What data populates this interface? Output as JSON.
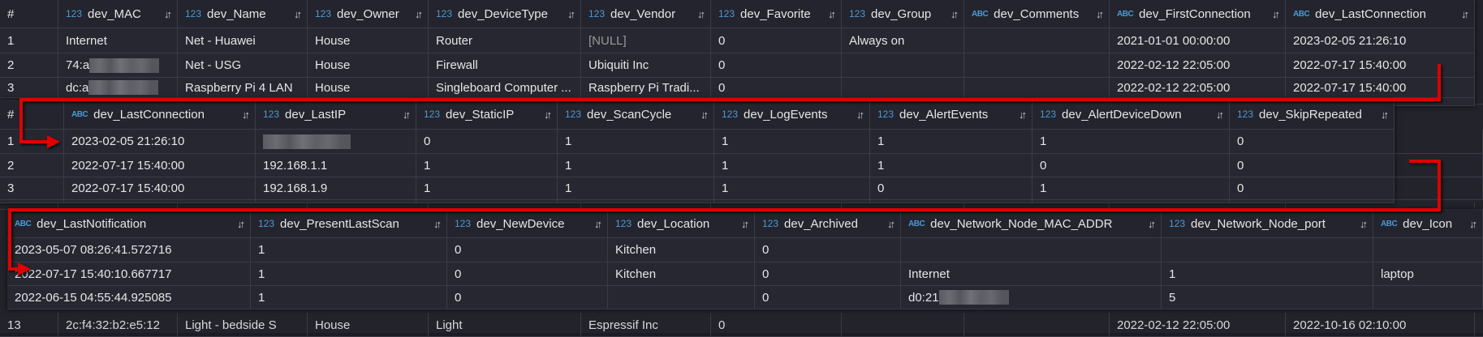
{
  "background_table": {
    "row": {
      "index": "13",
      "dev_MAC": "2c:f4:32:b2:e5:12",
      "dev_Name": "Light - bedside S",
      "dev_Owner": "House",
      "dev_DeviceType": "Light",
      "dev_Vendor": "Espressif Inc",
      "dev_Favorite": "0",
      "dev_FirstConnection": "2022-02-12 22:05:00",
      "dev_LastConnection": "2022-10-16 02:10:00"
    }
  },
  "tables": [
    {
      "columns": [
        {
          "name": "#",
          "type": ""
        },
        {
          "name": "dev_MAC",
          "type": "123"
        },
        {
          "name": "dev_Name",
          "type": "123"
        },
        {
          "name": "dev_Owner",
          "type": "123"
        },
        {
          "name": "dev_DeviceType",
          "type": "123"
        },
        {
          "name": "dev_Vendor",
          "type": "123"
        },
        {
          "name": "dev_Favorite",
          "type": "123"
        },
        {
          "name": "dev_Group",
          "type": "123"
        },
        {
          "name": "dev_Comments",
          "type": "ABC"
        },
        {
          "name": "dev_FirstConnection",
          "type": "ABC"
        },
        {
          "name": "dev_LastConnection",
          "type": "ABC"
        }
      ],
      "rows": [
        [
          "1",
          "Internet",
          "Net - Huawei",
          "House",
          "Router",
          "[NULL]",
          "0",
          "Always on",
          "",
          "2021-01-01 00:00:00",
          "2023-02-05 21:26:10"
        ],
        [
          "2",
          "74:a",
          "Net - USG",
          "House",
          "Firewall",
          "Ubiquiti Inc",
          "0",
          "",
          "",
          "2022-02-12 22:05:00",
          "2022-07-17 15:40:00"
        ],
        [
          "3",
          "dc:a",
          "Raspberry Pi 4 LAN",
          "House",
          "Singleboard Computer ...",
          "Raspberry Pi Tradi...",
          "0",
          "",
          "",
          "2022-02-12 22:05:00",
          "2022-07-17 15:40:00"
        ]
      ],
      "redacted": [
        [
          1,
          1
        ],
        [
          2,
          1
        ]
      ]
    },
    {
      "columns": [
        {
          "name": "#",
          "type": ""
        },
        {
          "name": "dev_LastConnection",
          "type": "ABC"
        },
        {
          "name": "dev_LastIP",
          "type": "123"
        },
        {
          "name": "dev_StaticIP",
          "type": "123"
        },
        {
          "name": "dev_ScanCycle",
          "type": "123"
        },
        {
          "name": "dev_LogEvents",
          "type": "123"
        },
        {
          "name": "dev_AlertEvents",
          "type": "123"
        },
        {
          "name": "dev_AlertDeviceDown",
          "type": "123"
        },
        {
          "name": "dev_SkipRepeated",
          "type": "123"
        }
      ],
      "rows": [
        [
          "1",
          "2023-02-05 21:26:10",
          "",
          "0",
          "1",
          "1",
          "1",
          "1",
          "0"
        ],
        [
          "2",
          "2022-07-17 15:40:00",
          "192.168.1.1",
          "1",
          "1",
          "1",
          "1",
          "0",
          "0"
        ],
        [
          "3",
          "2022-07-17 15:40:00",
          "192.168.1.9",
          "1",
          "1",
          "1",
          "0",
          "1",
          "0"
        ]
      ],
      "redacted": [
        [
          0,
          2
        ]
      ]
    },
    {
      "columns": [
        {
          "name": "dev_LastNotification",
          "type": "ABC"
        },
        {
          "name": "dev_PresentLastScan",
          "type": "123"
        },
        {
          "name": "dev_NewDevice",
          "type": "123"
        },
        {
          "name": "dev_Location",
          "type": "123"
        },
        {
          "name": "dev_Archived",
          "type": "123"
        },
        {
          "name": "dev_Network_Node_MAC_ADDR",
          "type": "ABC"
        },
        {
          "name": "dev_Network_Node_port",
          "type": "123"
        },
        {
          "name": "dev_Icon",
          "type": "ABC"
        }
      ],
      "rows": [
        [
          "2023-05-07 08:26:41.572716",
          "1",
          "0",
          "Kitchen",
          "0",
          "",
          "",
          ""
        ],
        [
          "2022-07-17 15:40:10.667717",
          "1",
          "0",
          "Kitchen",
          "0",
          "Internet",
          "1",
          "laptop"
        ],
        [
          "2022-06-15 04:55:44.925085",
          "1",
          "0",
          "",
          "0",
          "d0:21",
          "5",
          ""
        ]
      ],
      "redacted": [
        [
          2,
          5
        ]
      ]
    }
  ],
  "sort_icon": "sort-arrows-icon",
  "colors": {
    "arrow": "#e00000",
    "type_badge": "#4b9ad6",
    "cell_bg": "#262731",
    "border": "#3a3b46"
  }
}
